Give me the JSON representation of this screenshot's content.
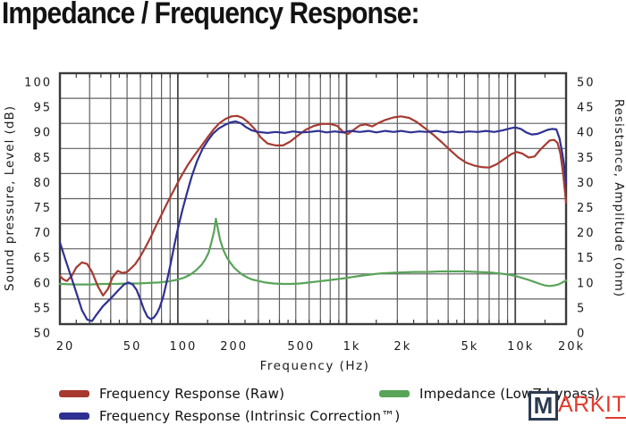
{
  "title": "Impedance / Frequency Response:",
  "watermark": {
    "boxed": "M",
    "red_part": "ARK",
    "underlined_part": "IT"
  },
  "colors": {
    "background": "#ffffff",
    "grid": "#606060",
    "grid_decade": "#474747",
    "border": "#3a3a3a",
    "text": "#1b1b1b",
    "raw_response": "#a63a31",
    "corrected_response": "#2e3192",
    "impedance": "#58a458",
    "watermark_navy": "#2c3b52",
    "watermark_red": "#e23b2e"
  },
  "legend": {
    "columns": [
      {
        "items": [
          {
            "label": "Frequency Response (Raw)",
            "series": 0
          },
          {
            "label": "Frequency Response (Intrinsic Correction™)",
            "series": 1
          }
        ]
      },
      {
        "items": [
          {
            "label": "Impedance (LowZ bypass)",
            "series": 2
          }
        ]
      }
    ]
  },
  "chart_data": {
    "type": "line",
    "title": "Impedance / Frequency Response:",
    "x_axis": {
      "label": "Frequency  (Hz)",
      "scale": "log",
      "min": 20,
      "max": 20000,
      "labeled_ticks": [
        {
          "value": 20,
          "label": "20"
        },
        {
          "value": 50,
          "label": "50"
        },
        {
          "value": 100,
          "label": "100"
        },
        {
          "value": 200,
          "label": "200"
        },
        {
          "value": 500,
          "label": "500"
        },
        {
          "value": 1000,
          "label": "1k"
        },
        {
          "value": 2000,
          "label": "2k"
        },
        {
          "value": 5000,
          "label": "5k"
        },
        {
          "value": 10000,
          "label": "10k"
        },
        {
          "value": 20000,
          "label": "20k"
        }
      ],
      "gridlines": [
        20,
        30,
        40,
        50,
        60,
        70,
        80,
        90,
        100,
        200,
        300,
        400,
        500,
        600,
        700,
        800,
        900,
        1000,
        2000,
        3000,
        4000,
        5000,
        6000,
        7000,
        8000,
        9000,
        10000,
        20000
      ],
      "decade_lines": [
        100,
        1000,
        10000
      ],
      "tick_marks": [
        20,
        25,
        30,
        35,
        40,
        45,
        50,
        60,
        70,
        80,
        90,
        100,
        150,
        200,
        250,
        300,
        350,
        400,
        450,
        500,
        600,
        700,
        800,
        900,
        1000,
        1500,
        2000,
        2500,
        3000,
        3500,
        4000,
        4500,
        5000,
        6000,
        7000,
        8000,
        9000,
        10000,
        15000,
        20000
      ]
    },
    "y_left": {
      "label": "Sound pressure, Level  (dB)",
      "min": 50,
      "max": 100,
      "step": 5
    },
    "y_right": {
      "label": "Resistance, Amplitude  (ohm)",
      "min": 0,
      "max": 50,
      "step": 5
    },
    "grid": true,
    "legend_position": "bottom",
    "series": [
      {
        "name": "Frequency Response (Raw)",
        "axis": "left",
        "unit": "dB",
        "color": "#a63a31",
        "points": [
          [
            20,
            59.6
          ],
          [
            21,
            58.9
          ],
          [
            22,
            58.6
          ],
          [
            23.5,
            59.6
          ],
          [
            25,
            61.3
          ],
          [
            27,
            62.3
          ],
          [
            29,
            62.0
          ],
          [
            31,
            60.4
          ],
          [
            33.5,
            57.6
          ],
          [
            36,
            55.7
          ],
          [
            38.5,
            57.0
          ],
          [
            41,
            59.3
          ],
          [
            44,
            60.6
          ],
          [
            47,
            60.2
          ],
          [
            50,
            60.4
          ],
          [
            53,
            61.2
          ],
          [
            56,
            62.0
          ],
          [
            60,
            63.5
          ],
          [
            64,
            65.2
          ],
          [
            69,
            67.3
          ],
          [
            74,
            69.5
          ],
          [
            80,
            71.8
          ],
          [
            87,
            74.3
          ],
          [
            95,
            76.8
          ],
          [
            104,
            79.3
          ],
          [
            114,
            81.6
          ],
          [
            125,
            83.6
          ],
          [
            137,
            85.4
          ],
          [
            150,
            87.2
          ],
          [
            163,
            88.8
          ],
          [
            177,
            90.1
          ],
          [
            192,
            90.9
          ],
          [
            208,
            91.4
          ],
          [
            225,
            91.5
          ],
          [
            242,
            91.1
          ],
          [
            262,
            90.2
          ],
          [
            285,
            88.9
          ],
          [
            310,
            87.2
          ],
          [
            340,
            86.0
          ],
          [
            380,
            85.6
          ],
          [
            420,
            85.6
          ],
          [
            465,
            86.4
          ],
          [
            515,
            87.6
          ],
          [
            570,
            88.7
          ],
          [
            640,
            89.5
          ],
          [
            710,
            89.9
          ],
          [
            800,
            89.9
          ],
          [
            880,
            89.5
          ],
          [
            960,
            88.2
          ],
          [
            1020,
            87.9
          ],
          [
            1100,
            88.7
          ],
          [
            1200,
            89.6
          ],
          [
            1300,
            89.8
          ],
          [
            1420,
            89.4
          ],
          [
            1550,
            90.1
          ],
          [
            1700,
            90.7
          ],
          [
            1900,
            91.2
          ],
          [
            2100,
            91.4
          ],
          [
            2350,
            91.1
          ],
          [
            2600,
            90.3
          ],
          [
            2900,
            89.1
          ],
          [
            3250,
            87.8
          ],
          [
            3650,
            86.3
          ],
          [
            4100,
            84.7
          ],
          [
            4600,
            83.2
          ],
          [
            5100,
            82.2
          ],
          [
            5700,
            81.6
          ],
          [
            6300,
            81.3
          ],
          [
            7000,
            81.2
          ],
          [
            7800,
            81.9
          ],
          [
            8700,
            83.0
          ],
          [
            9500,
            83.9
          ],
          [
            10200,
            84.3
          ],
          [
            11000,
            84.0
          ],
          [
            12000,
            83.2
          ],
          [
            13000,
            83.4
          ],
          [
            14000,
            84.7
          ],
          [
            15000,
            85.7
          ],
          [
            16000,
            86.6
          ],
          [
            17000,
            86.7
          ],
          [
            17800,
            86.1
          ],
          [
            18500,
            84.0
          ],
          [
            19200,
            80.0
          ],
          [
            20000,
            74.2
          ]
        ]
      },
      {
        "name": "Frequency Response (Intrinsic Correction™)",
        "axis": "left",
        "unit": "dB",
        "color": "#2e3192",
        "points": [
          [
            20,
            66.3
          ],
          [
            21.5,
            63.0
          ],
          [
            23,
            60.0
          ],
          [
            25,
            56.3
          ],
          [
            27,
            52.8
          ],
          [
            29,
            50.9
          ],
          [
            31,
            50.6
          ],
          [
            33,
            51.9
          ],
          [
            36,
            53.6
          ],
          [
            40,
            55.1
          ],
          [
            44,
            56.6
          ],
          [
            48,
            57.9
          ],
          [
            51,
            58.3
          ],
          [
            54,
            57.9
          ],
          [
            57,
            56.8
          ],
          [
            60,
            54.9
          ],
          [
            63,
            52.9
          ],
          [
            66,
            51.5
          ],
          [
            69,
            51.0
          ],
          [
            72,
            51.3
          ],
          [
            75,
            52.1
          ],
          [
            78,
            53.3
          ],
          [
            82,
            55.5
          ],
          [
            86,
            58.5
          ],
          [
            90,
            61.5
          ],
          [
            95,
            65.5
          ],
          [
            100,
            69.0
          ],
          [
            106,
            72.5
          ],
          [
            113,
            76.0
          ],
          [
            121,
            79.5
          ],
          [
            130,
            82.5
          ],
          [
            140,
            84.9
          ],
          [
            150,
            86.5
          ],
          [
            162,
            88.0
          ],
          [
            175,
            89.0
          ],
          [
            190,
            89.7
          ],
          [
            205,
            90.2
          ],
          [
            220,
            90.4
          ],
          [
            237,
            90.0
          ],
          [
            255,
            89.2
          ],
          [
            275,
            88.6
          ],
          [
            300,
            88.3
          ],
          [
            340,
            88.1
          ],
          [
            380,
            88.3
          ],
          [
            430,
            88.1
          ],
          [
            480,
            88.4
          ],
          [
            540,
            88.2
          ],
          [
            600,
            88.3
          ],
          [
            680,
            88.5
          ],
          [
            760,
            88.2
          ],
          [
            850,
            88.4
          ],
          [
            950,
            88.2
          ],
          [
            1050,
            88.5
          ],
          [
            1200,
            88.3
          ],
          [
            1350,
            88.5
          ],
          [
            1500,
            88.2
          ],
          [
            1700,
            88.5
          ],
          [
            1900,
            88.3
          ],
          [
            2100,
            88.5
          ],
          [
            2400,
            88.2
          ],
          [
            2700,
            88.4
          ],
          [
            3000,
            88.3
          ],
          [
            3400,
            88.5
          ],
          [
            3800,
            88.2
          ],
          [
            4200,
            88.4
          ],
          [
            4700,
            88.2
          ],
          [
            5300,
            88.4
          ],
          [
            6000,
            88.3
          ],
          [
            6700,
            88.5
          ],
          [
            7500,
            88.3
          ],
          [
            8400,
            88.6
          ],
          [
            9300,
            89.0
          ],
          [
            10000,
            89.2
          ],
          [
            10800,
            88.9
          ],
          [
            11600,
            88.2
          ],
          [
            12500,
            87.8
          ],
          [
            13500,
            87.9
          ],
          [
            14500,
            88.3
          ],
          [
            15500,
            88.7
          ],
          [
            16500,
            88.9
          ],
          [
            17500,
            88.8
          ],
          [
            18300,
            87.0
          ],
          [
            19000,
            84.0
          ],
          [
            19500,
            81.5
          ],
          [
            20000,
            78.0
          ]
        ]
      },
      {
        "name": "Impedance (LowZ bypass)",
        "axis": "right",
        "unit": "ohm",
        "color": "#58a458",
        "points": [
          [
            20,
            8.0
          ],
          [
            25,
            7.9
          ],
          [
            30,
            7.9
          ],
          [
            36,
            8.0
          ],
          [
            43,
            8.0
          ],
          [
            50,
            8.1
          ],
          [
            58,
            8.1
          ],
          [
            67,
            8.2
          ],
          [
            77,
            8.3
          ],
          [
            88,
            8.5
          ],
          [
            98,
            8.8
          ],
          [
            108,
            9.2
          ],
          [
            118,
            9.8
          ],
          [
            128,
            10.7
          ],
          [
            138,
            11.8
          ],
          [
            146,
            13.0
          ],
          [
            152,
            14.2
          ],
          [
            158,
            16.3
          ],
          [
            164,
            18.5
          ],
          [
            168,
            21.0
          ],
          [
            172,
            19.3
          ],
          [
            178,
            16.8
          ],
          [
            186,
            14.8
          ],
          [
            195,
            13.3
          ],
          [
            205,
            12.2
          ],
          [
            215,
            11.3
          ],
          [
            228,
            10.5
          ],
          [
            242,
            9.8
          ],
          [
            258,
            9.3
          ],
          [
            275,
            8.9
          ],
          [
            300,
            8.6
          ],
          [
            330,
            8.3
          ],
          [
            370,
            8.1
          ],
          [
            420,
            8.0
          ],
          [
            470,
            8.0
          ],
          [
            530,
            8.1
          ],
          [
            600,
            8.3
          ],
          [
            680,
            8.5
          ],
          [
            760,
            8.7
          ],
          [
            850,
            8.9
          ],
          [
            950,
            9.1
          ],
          [
            1050,
            9.3
          ],
          [
            1200,
            9.6
          ],
          [
            1400,
            9.9
          ],
          [
            1600,
            10.1
          ],
          [
            1800,
            10.2
          ],
          [
            2100,
            10.3
          ],
          [
            2500,
            10.4
          ],
          [
            3000,
            10.4
          ],
          [
            3600,
            10.5
          ],
          [
            4300,
            10.5
          ],
          [
            5000,
            10.5
          ],
          [
            6000,
            10.4
          ],
          [
            7000,
            10.3
          ],
          [
            8000,
            10.1
          ],
          [
            9000,
            9.9
          ],
          [
            10000,
            9.6
          ],
          [
            11000,
            9.2
          ],
          [
            12000,
            8.8
          ],
          [
            13000,
            8.4
          ],
          [
            14000,
            8.0
          ],
          [
            15000,
            7.7
          ],
          [
            16000,
            7.6
          ],
          [
            17000,
            7.7
          ],
          [
            18000,
            7.9
          ],
          [
            19000,
            8.3
          ],
          [
            20000,
            8.7
          ]
        ]
      }
    ]
  }
}
